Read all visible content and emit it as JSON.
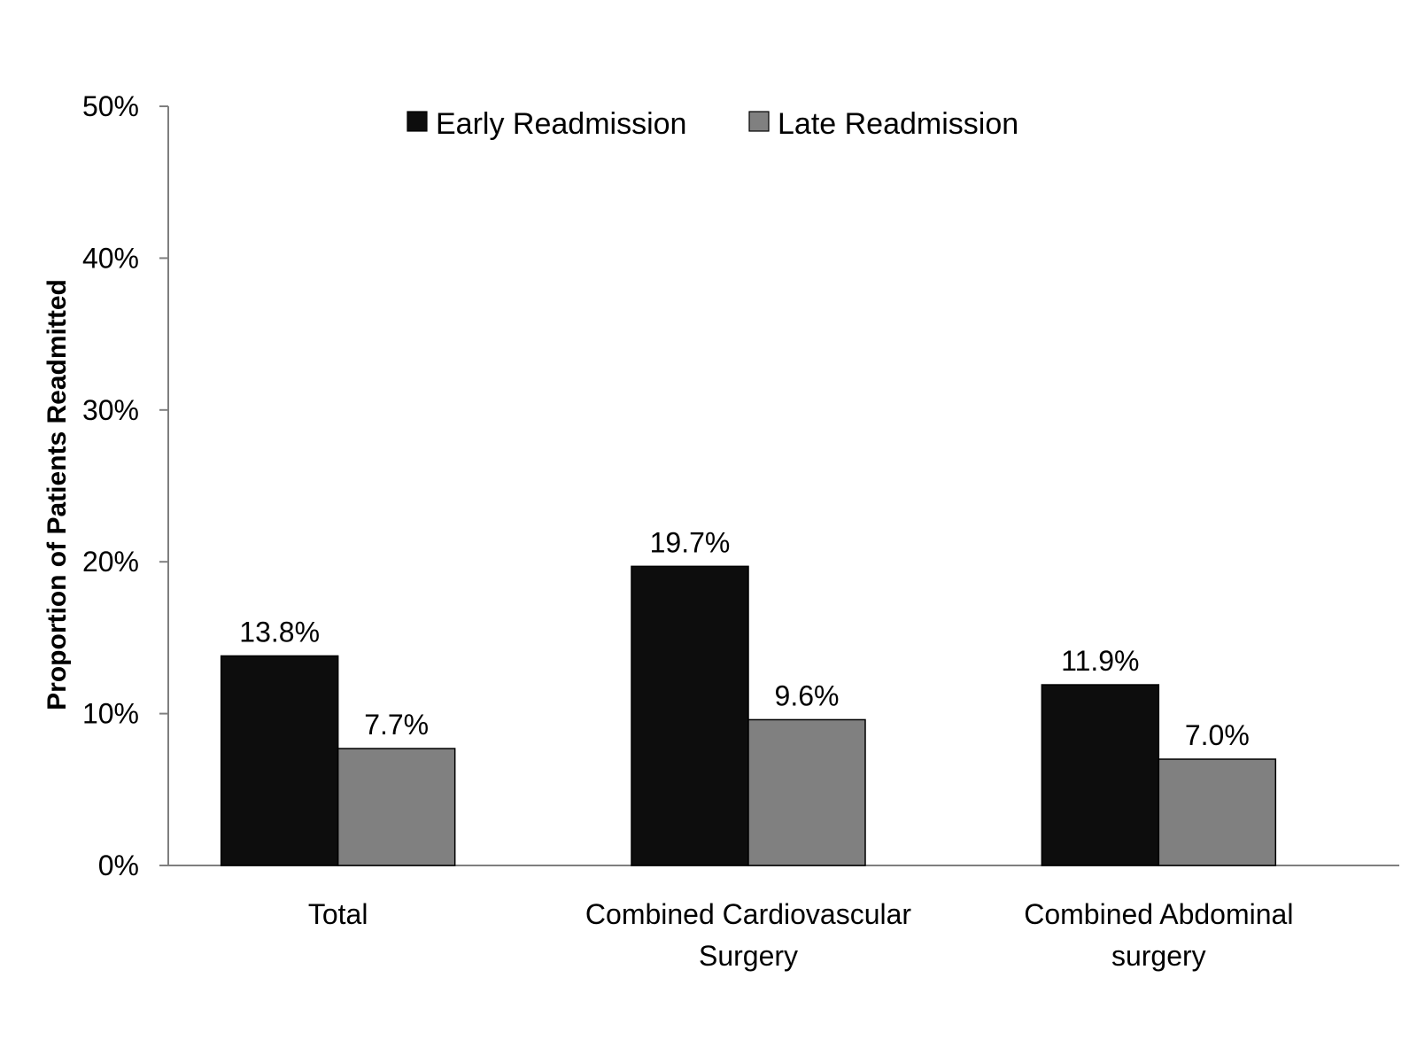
{
  "chart_data": {
    "type": "bar",
    "title": "",
    "xlabel": "",
    "ylabel": "Proportion of Patients Readmitted",
    "ylim": [
      0,
      50
    ],
    "y_ticks": [
      "0%",
      "10%",
      "20%",
      "30%",
      "40%",
      "50%"
    ],
    "y_tick_values": [
      0,
      10,
      20,
      30,
      40,
      50
    ],
    "categories": [
      [
        "Total"
      ],
      [
        "Combined Cardiovascular",
        "Surgery"
      ],
      [
        "Combined Abdominal",
        "surgery"
      ]
    ],
    "series": [
      {
        "name": "Early Readmission",
        "color": "#0d0d0d",
        "values": [
          13.8,
          19.7,
          11.9
        ],
        "labels": [
          "13.8%",
          "19.7%",
          "11.9%"
        ]
      },
      {
        "name": "Late Readmission",
        "color": "#808080",
        "values": [
          7.7,
          9.6,
          7.0
        ],
        "labels": [
          "7.7%",
          "9.6%",
          "7.0%"
        ]
      }
    ],
    "grid": false,
    "legend_position": "top-center"
  }
}
